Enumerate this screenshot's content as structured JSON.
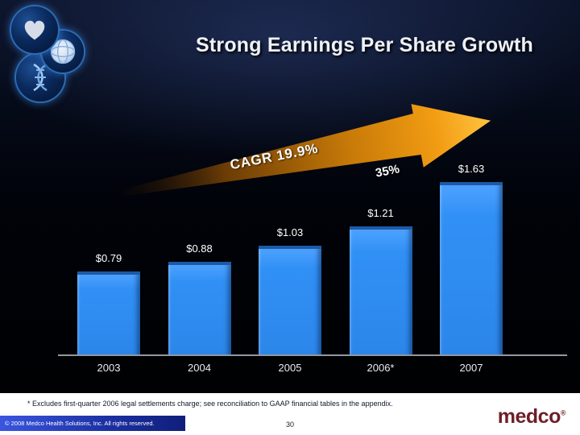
{
  "header": {
    "title": "Strong Earnings Per Share Growth"
  },
  "logos": {
    "heart_icon": "heart-in-hands",
    "globe_icon": "globe",
    "dna_icon": "dna-helix"
  },
  "annotations": {
    "cagr": "CAGR 19.9%",
    "growth": "35%"
  },
  "chart_data": {
    "type": "bar",
    "title": "Strong Earnings Per Share Growth",
    "categories": [
      "2003",
      "2004",
      "2005",
      "2006*",
      "2007"
    ],
    "values": [
      0.79,
      0.88,
      1.03,
      1.21,
      1.63
    ],
    "value_labels": [
      "$0.79",
      "$0.88",
      "$1.03",
      "$1.21",
      "$1.63"
    ],
    "annotations": [
      "CAGR 19.9%",
      "35%"
    ],
    "xlabel": "",
    "ylabel": "",
    "ylim": [
      0,
      1.8
    ],
    "grid": false,
    "legend": "none",
    "bar_color": "#3190f5"
  },
  "footer": {
    "footnote": "* Excludes first-quarter 2006 legal settlements charge; see reconciliation to GAAP financial tables in the appendix.",
    "copyright": "© 2008 Medco Health Solutions, Inc. All rights reserved.",
    "page_number": "30",
    "logo_text": "medco",
    "logo_reg_mark": "®"
  },
  "colors": {
    "bar": "#3190f5",
    "arrow": "#f2980f",
    "background": "#000000",
    "title_text": "#eef1f7",
    "medco_maroon": "#6e1f28",
    "copyright_bar_blue": "#1c2fa2"
  }
}
